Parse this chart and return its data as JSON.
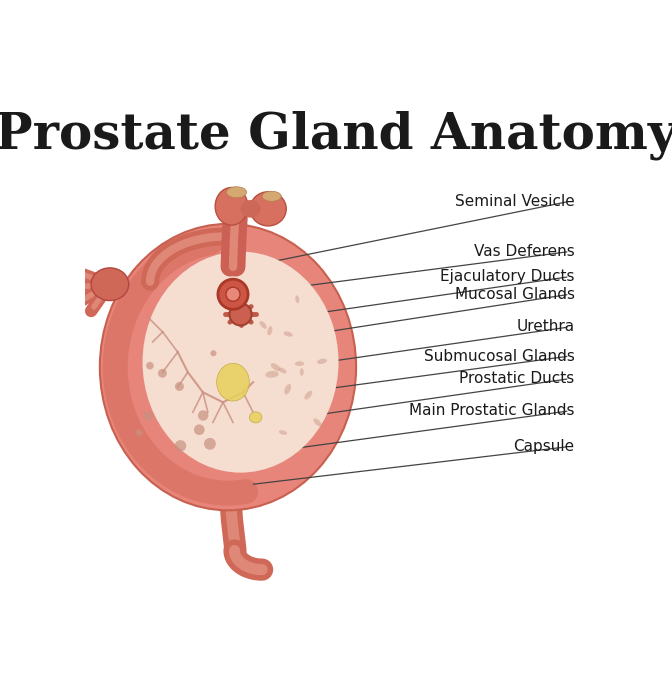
{
  "title": "Prostate Gland Anatomy",
  "title_fontsize": 36,
  "title_fontweight": "bold",
  "title_color": "#1a1a1a",
  "background_color": "#ffffff",
  "labels": [
    "Seminal Vesicle",
    "Vas Deferens",
    "Ejaculatory Ducts",
    "Mucosal Glands",
    "Urethra",
    "Submucosal Glands",
    "Prostatic Ducts",
    "Main Prostatic Glands",
    "Capsule"
  ],
  "label_fontsize": 11,
  "label_color": "#1a1a1a",
  "line_color": "#444444",
  "line_width": 0.9,
  "outer_color": "#e8857a",
  "outer_edge_color": "#c86050",
  "inner_color": "#f5ddd0",
  "capsule_color": "#e8857a",
  "central_color": "#d97060",
  "urethra_color": "#cc5545",
  "urethra_border": "#aa3828",
  "vessel_color": "#dd7065",
  "yellow_color": "#e8d060"
}
